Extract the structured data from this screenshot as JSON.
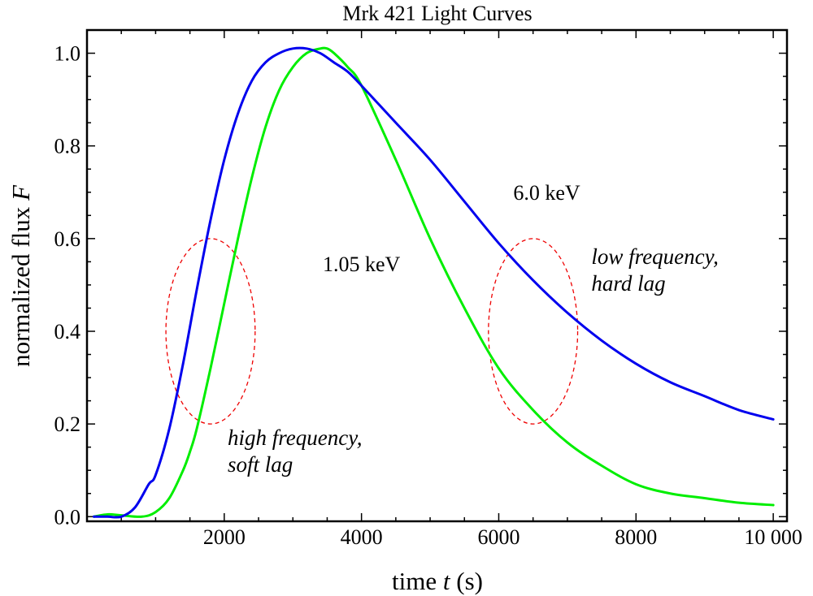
{
  "chart_data": {
    "type": "line",
    "title": "Mrk 421 Light Curves",
    "xlabel": {
      "prefix": "time ",
      "var": "t",
      "suffix": " (s)"
    },
    "ylabel": {
      "prefix": "normalized flux ",
      "var": "F"
    },
    "xlim": [
      0,
      10200
    ],
    "ylim": [
      -0.01,
      1.05
    ],
    "xticks": [
      {
        "value": 2000,
        "label": "2000"
      },
      {
        "value": 4000,
        "label": "4000"
      },
      {
        "value": 6000,
        "label": "6000"
      },
      {
        "value": 8000,
        "label": "8000"
      },
      {
        "value": 10000,
        "label": "10 000"
      }
    ],
    "yticks": [
      {
        "value": 0.0,
        "label": "0.0"
      },
      {
        "value": 0.2,
        "label": "0.2"
      },
      {
        "value": 0.4,
        "label": "0.4"
      },
      {
        "value": 0.6,
        "label": "0.6"
      },
      {
        "value": 0.8,
        "label": "0.8"
      },
      {
        "value": 1.0,
        "label": "1.0"
      }
    ],
    "series": [
      {
        "name": "6.0 keV",
        "color": "#0000ee",
        "x": [
          100,
          300,
          500,
          700,
          900,
          1000,
          1200,
          1400,
          1600,
          1800,
          2000,
          2200,
          2400,
          2600,
          2800,
          3000,
          3200,
          3400,
          3600,
          3800,
          4000,
          4500,
          5000,
          5500,
          6000,
          6500,
          7000,
          7500,
          8000,
          8500,
          9000,
          9500,
          10000
        ],
        "values": [
          0.0,
          0.0,
          0.0,
          0.02,
          0.07,
          0.09,
          0.19,
          0.33,
          0.49,
          0.64,
          0.77,
          0.87,
          0.94,
          0.98,
          1.0,
          1.01,
          1.01,
          1.0,
          0.98,
          0.96,
          0.93,
          0.85,
          0.77,
          0.68,
          0.59,
          0.51,
          0.44,
          0.38,
          0.33,
          0.29,
          0.26,
          0.23,
          0.21
        ]
      },
      {
        "name": "1.05 keV",
        "color": "#00ee00",
        "x": [
          100,
          300,
          500,
          800,
          1000,
          1200,
          1400,
          1500,
          1600,
          1800,
          2000,
          2200,
          2400,
          2600,
          2800,
          3000,
          3200,
          3400,
          3500,
          3600,
          3800,
          4000,
          4500,
          5000,
          5500,
          6000,
          6500,
          7000,
          7500,
          8000,
          8500,
          9000,
          9500,
          10000
        ],
        "values": [
          0.0,
          0.005,
          0.003,
          0.0,
          0.01,
          0.04,
          0.1,
          0.14,
          0.19,
          0.32,
          0.46,
          0.6,
          0.73,
          0.84,
          0.92,
          0.97,
          1.0,
          1.01,
          1.01,
          1.0,
          0.97,
          0.93,
          0.77,
          0.6,
          0.45,
          0.32,
          0.23,
          0.16,
          0.11,
          0.07,
          0.05,
          0.04,
          0.03,
          0.025
        ]
      }
    ],
    "series_labels": [
      {
        "text": "6.0 keV",
        "x": 6700,
        "y": 0.7
      },
      {
        "text": "1.05 keV",
        "x": 4000,
        "y": 0.545
      }
    ],
    "ellipses": [
      {
        "name": "high-frequency-ellipse",
        "cx": 1800,
        "cy": 0.4,
        "rx": 650,
        "ry": 0.2,
        "color": "#ee0000"
      },
      {
        "name": "low-frequency-ellipse",
        "cx": 6500,
        "cy": 0.4,
        "rx": 650,
        "ry": 0.2,
        "color": "#ee0000"
      }
    ],
    "annotations": [
      {
        "name": "high-frequency",
        "lines": [
          "high frequency,",
          "soft lag"
        ],
        "x": 2050,
        "y": 0.155
      },
      {
        "name": "low-frequency",
        "lines": [
          "low frequency,",
          "hard lag"
        ],
        "x": 7350,
        "y": 0.545
      }
    ]
  }
}
